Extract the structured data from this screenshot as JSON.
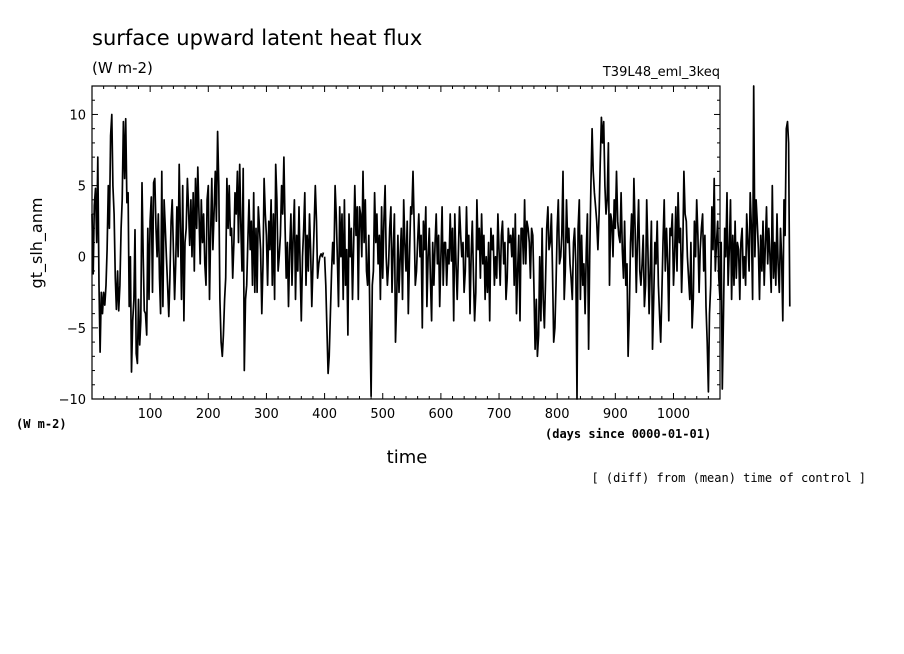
{
  "chart_data": {
    "type": "line",
    "title": "surface upward latent heat flux",
    "title_units": "(W m-2)",
    "run_label": "T39L48_eml_3keq",
    "ylabel": "gt_slh_anm",
    "y_units": "(W m-2)",
    "xlabel": "time",
    "x_units": "(days since 0000-01-01)",
    "note": "[ (diff) from (mean) time of control ]",
    "xlim": [
      0,
      1080
    ],
    "ylim": [
      -10,
      12
    ],
    "x_ticks": [
      100,
      200,
      300,
      400,
      500,
      600,
      700,
      800,
      900,
      1000
    ],
    "y_ticks": [
      -10,
      -5,
      0,
      5,
      10
    ],
    "x_ticks_minor_step": 20,
    "y_ticks_minor_step": 1,
    "grid": false,
    "series": [
      {
        "name": "",
        "color": "#000000",
        "x_step": 2,
        "x_start": 0,
        "values": [
          3.0,
          -1.2,
          3.6,
          4.8,
          1.0,
          7.0,
          -2.0,
          -6.7,
          -2.5,
          -4.0,
          -2.5,
          -3.4,
          -2.0,
          0.5,
          5.0,
          2.0,
          8.5,
          10.0,
          5.0,
          3.0,
          -1.5,
          -3.7,
          -1.0,
          -3.8,
          -2.0,
          2.0,
          4.0,
          9.5,
          5.5,
          9.7,
          3.8,
          4.5,
          -3.5,
          0.0,
          -8.1,
          -4.5,
          -3.0,
          1.9,
          -6.8,
          -7.5,
          -3.0,
          -6.2,
          -4.5,
          5.2,
          0.0,
          -3.8,
          -4.0,
          -5.5,
          2.0,
          -3.0,
          2.5,
          4.2,
          -2.5,
          5.2,
          5.5,
          2.0,
          0.0,
          3.0,
          -1.5,
          -4.0,
          6.0,
          -3.5,
          4.0,
          2.0,
          0.0,
          -2.0,
          -4.2,
          -1.5,
          2.5,
          4.0,
          0.5,
          -3.0,
          -0.5,
          3.5,
          0.0,
          6.5,
          2.0,
          -3.0,
          5.0,
          -4.5,
          1.0,
          2.0,
          5.5,
          3.5,
          0.8,
          4.0,
          0.0,
          4.5,
          -1.0,
          5.5,
          2.0,
          6.3,
          3.0,
          -0.5,
          4.0,
          1.0,
          3.0,
          -0.5,
          -2.0,
          4.0,
          5.0,
          -3.0,
          1.5,
          5.5,
          0.5,
          3.2,
          6.0,
          2.5,
          8.8,
          5.0,
          -3.0,
          -6.0,
          -7.0,
          -5.5,
          -3.0,
          -1.5,
          5.5,
          2.0,
          5.0,
          1.5,
          2.0,
          -1.5,
          1.0,
          4.5,
          3.0,
          6.0,
          1.0,
          6.5,
          2.0,
          -1.0,
          6.2,
          -8.0,
          -3.0,
          -2.0,
          1.0,
          4.0,
          0.5,
          2.5,
          -2.0,
          4.5,
          -2.5,
          2.0,
          -2.5,
          3.5,
          2.0,
          0.5,
          -4.0,
          -0.5,
          5.5,
          3.0,
          1.5,
          -2.0,
          2.5,
          0.5,
          4.0,
          -2.0,
          3.0,
          -3.0,
          6.5,
          4.0,
          -1.0,
          0.0,
          1.5,
          5.0,
          3.0,
          7.0,
          2.0,
          -1.5,
          1.0,
          -3.5,
          0.5,
          3.0,
          -2.0,
          1.5,
          4.0,
          -3.0,
          1.5,
          -1.0,
          3.5,
          -1.0,
          -4.5,
          0.0,
          2.0,
          4.5,
          -2.0,
          1.5,
          -1.0,
          3.0,
          0.5,
          -3.5,
          -0.5,
          2.0,
          5.0,
          2.5,
          -1.5,
          -0.5,
          0.0,
          0.2,
          0.0,
          0.3
        ]
      },
      {
        "name": "",
        "color": "#000000",
        "x_step": 2,
        "x_start": 400,
        "values": [
          0.0,
          -2.0,
          -5.0,
          -8.2,
          -7.0,
          -4.0,
          -1.0,
          1.0,
          -0.5,
          5.0,
          3.0,
          -0.2,
          -3.5,
          3.5,
          0.0,
          3.0,
          -3.0,
          4.0,
          -2.0,
          0.5,
          -5.5,
          3.0,
          0.0,
          2.0,
          -3.0,
          1.0,
          5.0,
          1.5,
          3.5,
          -3.0,
          3.5,
          3.0,
          0.0,
          6.0,
          1.0,
          4.0,
          -1.0,
          -2.0,
          1.5,
          -4.5,
          -9.8,
          -2.0,
          -1.0,
          4.5,
          1.0,
          3.0,
          -0.5,
          1.5,
          -3.0,
          3.5,
          -1.5,
          2.5,
          5.0,
          0.0,
          -2.0,
          -0.5,
          2.0,
          3.5,
          -2.5,
          0.5,
          3.0,
          -6.0,
          -3.0,
          1.5,
          -2.5,
          0.0,
          2.0,
          -3.0,
          4.0,
          1.0,
          -1.0,
          2.5,
          -4.0,
          0.0,
          3.5,
          3.0,
          6.0,
          2.5,
          -2.0,
          -1.0,
          1.0,
          3.0,
          0.0,
          1.5,
          -5.0,
          2.5,
          0.5,
          3.5,
          -3.5,
          0.0,
          2.0,
          -1.5,
          -4.5,
          1.0,
          -2.0,
          1.0,
          3.0,
          -0.5,
          1.5,
          -3.5,
          0.0,
          3.5,
          -2.0,
          1.0,
          1.0,
          -2.0,
          0.5,
          -0.5,
          3.0,
          -0.3,
          2.0,
          -4.5,
          3.0,
          -0.5,
          -3.0,
          0.0,
          3.5,
          1.5,
          0.0,
          1.0,
          -2.5,
          -1.0,
          3.5,
          0.0,
          1.5,
          -4.0,
          0.0,
          2.5,
          -1.5,
          -4.5,
          -2.5,
          4.0,
          0.5,
          2.0,
          -1.5,
          3.0,
          -0.5,
          1.5,
          -3.0,
          0.0,
          -2.5,
          1.0,
          -4.5,
          2.0,
          0.5,
          1.5,
          -2.0,
          0.0,
          -1.5,
          3.0,
          0.5,
          -2.0,
          1.5,
          2.5,
          -0.5,
          1.0,
          -3.0,
          -1.5,
          2.0,
          1.0,
          1.5,
          0.0,
          2.0,
          -2.0,
          3.0,
          -4.0,
          -1.0,
          1.5,
          -4.5,
          2.0,
          2.0,
          -0.5,
          4.0,
          -0.5,
          2.5,
          2.0,
          1.0,
          -1.5,
          2.0,
          1.5,
          -2.0,
          -6.5,
          -3.0,
          -7.0,
          -5.5,
          0.0,
          -4.5,
          2.0,
          -3.0,
          -5.0,
          -1.5,
          2.0,
          3.5,
          0.5,
          1.0,
          3.0,
          -1.0,
          -6.0,
          -5.0,
          -2.0,
          2.0,
          4.0,
          -0.5,
          0.0,
          1.5,
          6.0,
          -3.0,
          -1.0,
          4.0,
          1.0,
          2.0,
          -0.5,
          -1.5,
          -3.0,
          1.0,
          2.0,
          -0.5,
          -10.0,
          2.0,
          4.0,
          -3.0,
          1.5,
          -2.0,
          -0.5,
          -4.0,
          0.5,
          3.0,
          -6.5,
          0.0,
          5.0,
          9.0,
          6.0,
          4.5,
          3.5,
          2.5,
          0.5,
          3.0,
          6.5,
          9.8,
          8.0,
          9.5,
          5.0,
          3.0,
          4.0,
          8.0,
          -2.0,
          3.0,
          2.5,
          0.0,
          4.0,
          2.0,
          6.0,
          2.5,
          1.5,
          1.0,
          4.5,
          0.5,
          -1.5,
          2.5,
          -2.0,
          -0.5,
          -7.0,
          -4.0,
          1.0,
          3.0,
          0.0,
          5.5,
          2.0,
          -2.5,
          1.0,
          4.0,
          -1.0,
          -2.0,
          -0.5,
          1.5,
          -3.5,
          -2.0,
          4.0,
          0.5,
          -4.0,
          -1.0,
          2.5,
          -6.5,
          -3.0,
          1.0,
          -0.5,
          2.5,
          -2.0,
          -4.0,
          -6.0,
          -2.5,
          1.0,
          4.0,
          -1.0,
          2.0,
          -0.5,
          -4.5,
          2.0,
          1.5,
          3.0,
          -2.0,
          0.0,
          3.5,
          -1.0,
          4.5,
          1.0,
          2.0,
          -2.5,
          0.5,
          6.0,
          3.0,
          2.5,
          0.0,
          -1.5,
          -3.0,
          1.0,
          -5.0,
          -3.0,
          2.5,
          0.0,
          4.0,
          1.5,
          -2.5,
          0.5,
          2.0,
          3.0,
          -1.0,
          1.5,
          -3.5,
          -6.0,
          -9.5,
          -4.0,
          -2.0,
          3.5,
          0.5,
          5.5,
          -1.0,
          1.0,
          2.5,
          -1.5,
          -3.0,
          1.0,
          -9.3,
          -4.0,
          2.0,
          0.0,
          4.5,
          -2.0,
          0.5,
          4.0,
          -3.0,
          1.5,
          -2.0,
          2.5,
          -1.5,
          1.0,
          0.5,
          -3.0,
          1.0,
          2.0,
          -1.5,
          0.0,
          -2.0,
          3.0,
          1.0,
          -1.0,
          4.5,
          2.0,
          -3.0,
          12.0,
          0.0,
          4.0,
          2.5,
          0.5,
          -3.0,
          1.5,
          -1.0,
          2.5,
          -2.0,
          1.0,
          3.5,
          -0.5,
          2.0,
          0.0,
          -2.5,
          5.0,
          -1.5,
          1.0,
          -2.0,
          3.0,
          -0.5,
          -2.5,
          2.0,
          0.0,
          -4.5,
          4.0,
          1.5,
          9.0,
          9.5,
          8.0,
          -3.5
        ]
      }
    ]
  }
}
